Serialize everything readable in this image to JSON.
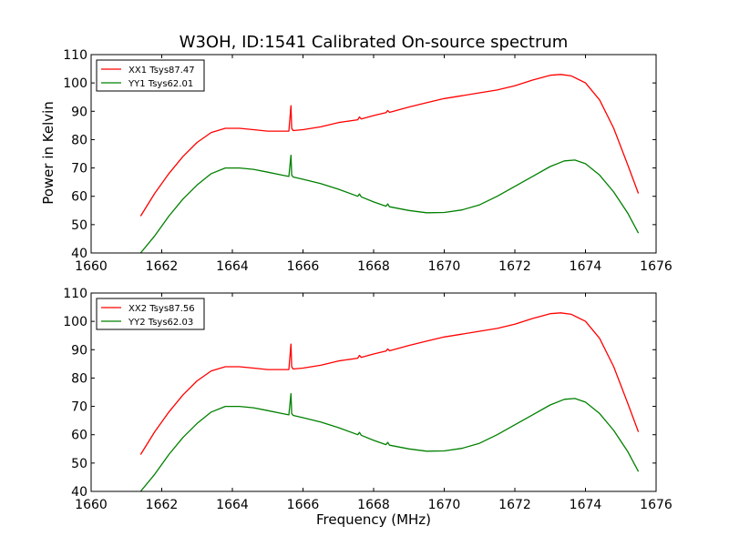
{
  "title": "W3OH, ID:1541 Calibrated On-source spectrum",
  "xlabel": "Frequency (MHz)",
  "ylabel": "Power in Kelvin",
  "chart_data": [
    {
      "type": "line",
      "title": "W3OH, ID:1541 Calibrated On-source spectrum",
      "xlabel": "",
      "ylabel": "Power in Kelvin",
      "xlim": [
        1660,
        1676
      ],
      "ylim": [
        40,
        110
      ],
      "xticks": [
        1660,
        1662,
        1664,
        1666,
        1668,
        1670,
        1672,
        1674,
        1676
      ],
      "yticks": [
        40,
        50,
        60,
        70,
        80,
        90,
        100,
        110
      ],
      "grid": false,
      "legend": "top-left",
      "series": [
        {
          "name": "XX1 Tsys87.47",
          "color": "#ff0000",
          "x": [
            1661.4,
            1661.8,
            1662.2,
            1662.6,
            1663.0,
            1663.4,
            1663.8,
            1664.2,
            1664.6,
            1665.0,
            1665.4,
            1665.6,
            1665.66,
            1665.68,
            1665.72,
            1666.0,
            1666.5,
            1667.0,
            1667.55,
            1667.6,
            1667.65,
            1668.0,
            1668.35,
            1668.4,
            1668.45,
            1669.0,
            1669.5,
            1670.0,
            1670.5,
            1671.0,
            1671.5,
            1672.0,
            1672.5,
            1673.0,
            1673.3,
            1673.6,
            1674.0,
            1674.4,
            1674.8,
            1675.2,
            1675.5
          ],
          "values": [
            53,
            61,
            68,
            74,
            79,
            82.5,
            84,
            84,
            83.5,
            83,
            83,
            83,
            92,
            84,
            83.2,
            83.5,
            84.5,
            86,
            87,
            88,
            87.3,
            88.5,
            89.5,
            90.3,
            89.6,
            91.5,
            93,
            94.5,
            95.5,
            96.5,
            97.5,
            99,
            101,
            102.7,
            103,
            102.5,
            100,
            94,
            84,
            71,
            61
          ]
        },
        {
          "name": "YY1 Tsys62.01",
          "color": "#008000",
          "x": [
            1661.4,
            1661.8,
            1662.2,
            1662.6,
            1663.0,
            1663.4,
            1663.8,
            1664.2,
            1664.6,
            1665.0,
            1665.4,
            1665.6,
            1665.66,
            1665.68,
            1665.72,
            1666.0,
            1666.5,
            1667.0,
            1667.55,
            1667.6,
            1667.65,
            1668.0,
            1668.35,
            1668.4,
            1668.45,
            1669.0,
            1669.5,
            1670.0,
            1670.5,
            1671.0,
            1671.5,
            1672.0,
            1672.5,
            1673.0,
            1673.4,
            1673.7,
            1674.0,
            1674.4,
            1674.8,
            1675.2,
            1675.5
          ],
          "values": [
            40,
            46,
            53,
            59,
            64,
            68,
            70,
            70,
            69.5,
            68.5,
            67.5,
            67,
            74.5,
            67.5,
            66.8,
            66,
            64.5,
            62.5,
            60,
            60.8,
            59.8,
            58,
            56.5,
            57.3,
            56.3,
            55,
            54.2,
            54.3,
            55.2,
            57,
            60,
            63.5,
            67,
            70.5,
            72.5,
            72.8,
            71.5,
            67.5,
            61.5,
            54,
            47
          ]
        }
      ]
    },
    {
      "type": "line",
      "title": "",
      "xlabel": "Frequency (MHz)",
      "ylabel": "",
      "xlim": [
        1660,
        1676
      ],
      "ylim": [
        40,
        110
      ],
      "xticks": [
        1660,
        1662,
        1664,
        1666,
        1668,
        1670,
        1672,
        1674,
        1676
      ],
      "yticks": [
        40,
        50,
        60,
        70,
        80,
        90,
        100,
        110
      ],
      "grid": false,
      "legend": "top-left",
      "series": [
        {
          "name": "XX2 Tsys87.56",
          "color": "#ff0000",
          "x": [
            1661.4,
            1661.8,
            1662.2,
            1662.6,
            1663.0,
            1663.4,
            1663.8,
            1664.2,
            1664.6,
            1665.0,
            1665.4,
            1665.6,
            1665.66,
            1665.68,
            1665.72,
            1666.0,
            1666.5,
            1667.0,
            1667.55,
            1667.6,
            1667.65,
            1668.0,
            1668.35,
            1668.4,
            1668.45,
            1669.0,
            1669.5,
            1670.0,
            1670.5,
            1671.0,
            1671.5,
            1672.0,
            1672.5,
            1673.0,
            1673.3,
            1673.6,
            1674.0,
            1674.4,
            1674.8,
            1675.2,
            1675.5
          ],
          "values": [
            53,
            61,
            68,
            74,
            79,
            82.5,
            84,
            84,
            83.5,
            83,
            83,
            83,
            92,
            84,
            83.2,
            83.5,
            84.5,
            86,
            87,
            88,
            87.3,
            88.5,
            89.5,
            90.3,
            89.6,
            91.5,
            93,
            94.5,
            95.5,
            96.5,
            97.5,
            99,
            101,
            102.7,
            103,
            102.5,
            100,
            94,
            84,
            71,
            61
          ]
        },
        {
          "name": "YY2 Tsys62.03",
          "color": "#008000",
          "x": [
            1661.4,
            1661.8,
            1662.2,
            1662.6,
            1663.0,
            1663.4,
            1663.8,
            1664.2,
            1664.6,
            1665.0,
            1665.4,
            1665.6,
            1665.66,
            1665.68,
            1665.72,
            1666.0,
            1666.5,
            1667.0,
            1667.55,
            1667.6,
            1667.65,
            1668.0,
            1668.35,
            1668.4,
            1668.45,
            1669.0,
            1669.5,
            1670.0,
            1670.5,
            1671.0,
            1671.5,
            1672.0,
            1672.5,
            1673.0,
            1673.4,
            1673.7,
            1674.0,
            1674.4,
            1674.8,
            1675.2,
            1675.5
          ],
          "values": [
            40,
            46,
            53,
            59,
            64,
            68,
            70,
            70,
            69.5,
            68.5,
            67.5,
            67,
            74.5,
            67.5,
            66.8,
            66,
            64.5,
            62.5,
            60,
            60.8,
            59.8,
            58,
            56.5,
            57.3,
            56.3,
            55,
            54.2,
            54.3,
            55.2,
            57,
            60,
            63.5,
            67,
            70.5,
            72.5,
            72.8,
            71.5,
            67.5,
            61.5,
            54,
            47
          ]
        }
      ]
    }
  ]
}
